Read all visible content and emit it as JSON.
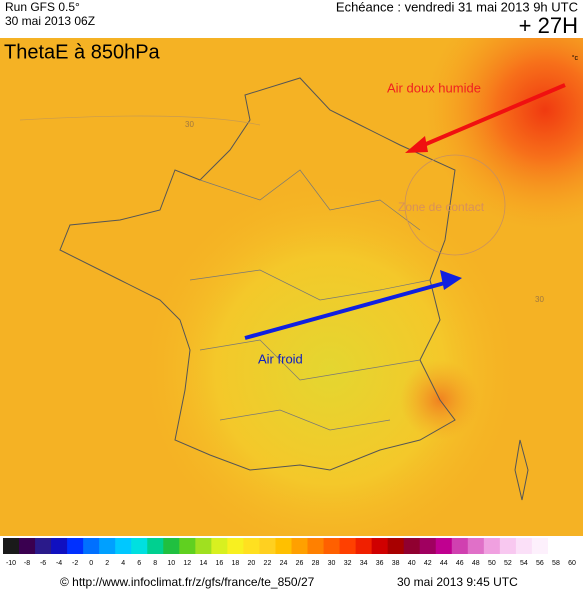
{
  "header": {
    "run": "Run GFS 0.5°",
    "run_date": "30 mai 2013 06Z",
    "echeance": "Echéance : vendredi 31 mai 2013 9h UTC",
    "lead": "+ 27H"
  },
  "map": {
    "title": "ThetaE à 850hPa",
    "unit": "°c",
    "annotations": [
      "Air doux humide",
      "Zone de contact",
      "Air froid"
    ],
    "contour_labels": [
      "30",
      "30"
    ]
  },
  "colorbar": {
    "labels": [
      -10,
      -8,
      -6,
      -4,
      -2,
      0,
      2,
      4,
      6,
      8,
      10,
      12,
      14,
      16,
      18,
      20,
      22,
      24,
      26,
      28,
      30,
      32,
      34,
      36,
      38,
      40,
      42,
      44,
      46,
      48,
      50,
      52,
      54,
      56,
      58,
      60
    ],
    "colors": [
      "#1a1a1a",
      "#3a0050",
      "#2a1a8a",
      "#1010c0",
      "#0030ff",
      "#0070ff",
      "#00a0ff",
      "#00c8ff",
      "#00e0e0",
      "#00d090",
      "#20c040",
      "#60d020",
      "#a0e020",
      "#d8f020",
      "#f8f020",
      "#ffe020",
      "#ffd020",
      "#ffc000",
      "#ffa000",
      "#ff8000",
      "#ff6000",
      "#ff4000",
      "#f02000",
      "#d00000",
      "#a80000",
      "#900030",
      "#a00060",
      "#c00090",
      "#d040b0",
      "#e070c8",
      "#f0a0e0",
      "#f8c8f0",
      "#fbe0f8",
      "#fdf0fc",
      "#ffffff",
      "#ffffff"
    ]
  },
  "footer": {
    "source": "© http://www.infoclimat.fr/z/gfs/france/te_850/27",
    "issued": "30 mai 2013  9:45 UTC"
  }
}
